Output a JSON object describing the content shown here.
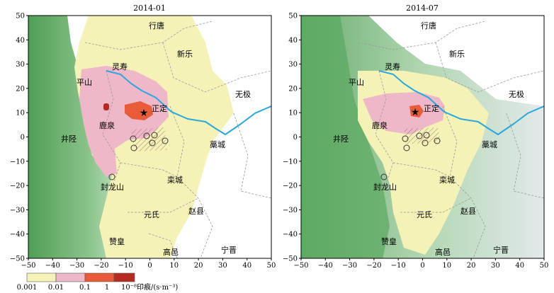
{
  "panels": [
    {
      "title": "2014-01",
      "places": [
        "行唐",
        "新乐",
        "灵寿",
        "平山",
        "无极",
        "正定",
        "鹿泉",
        "井陉",
        "藁城",
        "栾城",
        "封龙山",
        "元氏",
        "赵县",
        "赞皇",
        "高邑",
        "宁晋"
      ]
    },
    {
      "title": "2014-07",
      "places": [
        "行唐",
        "新乐",
        "灵寿",
        "平山",
        "无极",
        "正定",
        "鹿泉",
        "井陉",
        "藁城",
        "栾城",
        "封龙山",
        "元氏",
        "赵县",
        "赞皇",
        "高邑",
        "宁晋"
      ]
    }
  ],
  "axes": {
    "x_ticks": [
      "−50",
      "−40",
      "−30",
      "−20",
      "−10",
      "0",
      "10",
      "20",
      "30",
      "40",
      "50"
    ],
    "y_ticks": [
      "50",
      "40",
      "30",
      "20",
      "10",
      "0",
      "−10",
      "−20",
      "−30",
      "−40",
      "−50"
    ],
    "x_range": [
      -50,
      50
    ],
    "y_range": [
      -50,
      50
    ]
  },
  "legend": {
    "labels": [
      "0.001",
      "0.01",
      "0.1",
      "1",
      "10⁻⁸印痕/(s·m⁻³)"
    ],
    "colors": [
      "#f5f2b8",
      "#eeb8c8",
      "#e85c3a",
      "#b52a20"
    ]
  },
  "colors": {
    "river": "#2aa7dd",
    "terrain_green": "#5aa860",
    "footprint_low": "#f5f2b8",
    "footprint_mid": "#eeb8c8",
    "footprint_high": "#e85c3a"
  }
}
